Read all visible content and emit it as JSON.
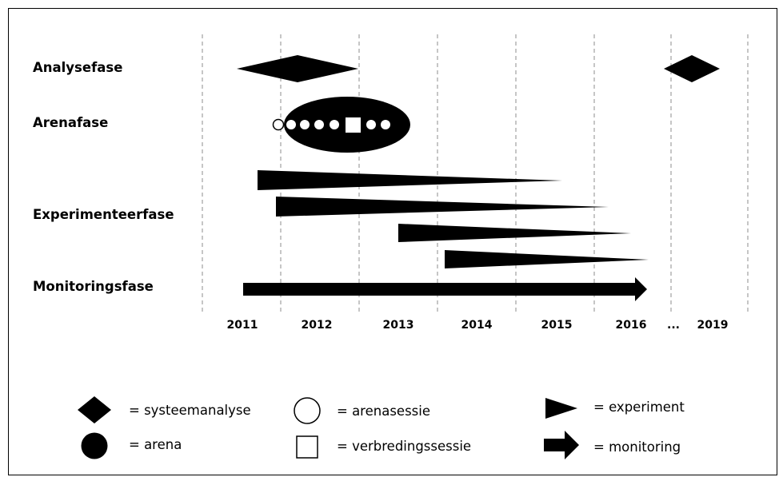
{
  "phases": {
    "analysis": "Analysefase",
    "arena": "Arenafase",
    "experiment": "Experimenteerfase",
    "monitoring": "Monitoringsfase"
  },
  "timeline": {
    "years": [
      "2011",
      "2012",
      "2013",
      "2014",
      "2015",
      "2016",
      "...",
      "2019"
    ]
  },
  "legend": {
    "systeemanalyse": "= systeemanalyse",
    "arena": "= arena",
    "arenasessie": "= arenasessie",
    "verbredingssessie": "= verbredingssessie",
    "experiment": "= experiment",
    "monitoring": "= monitoring"
  }
}
